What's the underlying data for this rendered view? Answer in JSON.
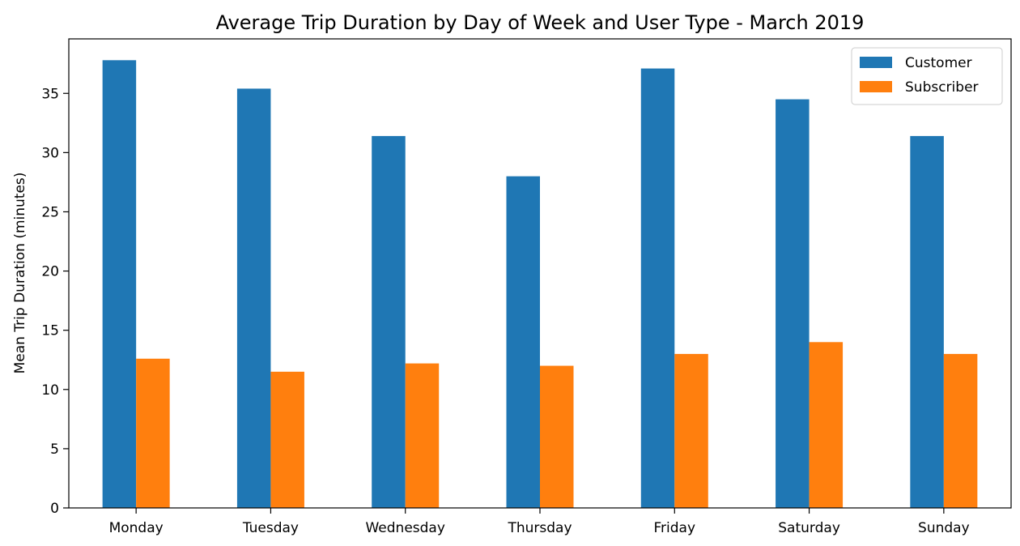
{
  "chart_data": {
    "type": "bar",
    "title": "Average Trip Duration by Day of Week and User Type - March 2019",
    "xlabel": "",
    "ylabel": "Mean Trip Duration (minutes)",
    "categories": [
      "Monday",
      "Tuesday",
      "Wednesday",
      "Thursday",
      "Friday",
      "Saturday",
      "Sunday"
    ],
    "series": [
      {
        "name": "Customer",
        "color": "#1f77b4",
        "values": [
          37.8,
          35.4,
          31.4,
          28.0,
          37.1,
          34.5,
          31.4
        ]
      },
      {
        "name": "Subscriber",
        "color": "#ff7f0e",
        "values": [
          12.6,
          11.5,
          12.2,
          12.0,
          13.0,
          14.0,
          13.0
        ]
      }
    ],
    "yticks": [
      0,
      5,
      10,
      15,
      20,
      25,
      30,
      35
    ],
    "ylim": [
      0,
      39.6
    ],
    "grid": false,
    "legend_position": "top-right"
  }
}
